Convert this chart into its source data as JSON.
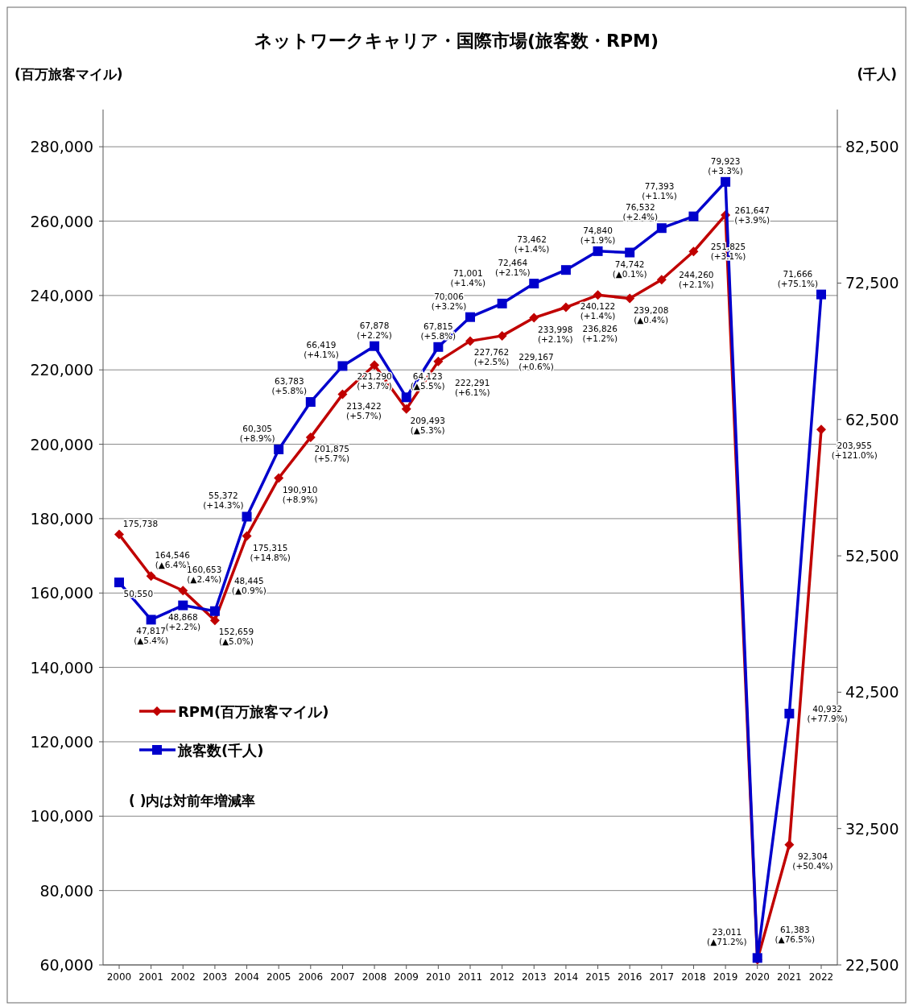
{
  "chart_data": {
    "type": "line",
    "title": "ネットワークキャリア・国際市場(旅客数・RPM)",
    "ylabel": "(百万旅客マイル)",
    "y2label": "(千人)",
    "categories": [
      "2000",
      "2001",
      "2002",
      "2003",
      "2004",
      "2005",
      "2006",
      "2007",
      "2008",
      "2009",
      "2010",
      "2011",
      "2012",
      "2013",
      "2014",
      "2015",
      "2016",
      "2017",
      "2018",
      "2019",
      "2020",
      "2021",
      "2022"
    ],
    "series": [
      {
        "name": "RPM(百万旅客マイル)",
        "color": "#c00000",
        "marker": "diamond",
        "values": [
          175738,
          164546,
          160653,
          152659,
          175315,
          190910,
          201875,
          213422,
          221290,
          209493,
          222291,
          227762,
          229167,
          233998,
          236826,
          240122,
          239208,
          244260,
          251825,
          261647,
          61383,
          92304,
          203955
        ],
        "value_labels": [
          "175,738",
          "164,546\n(▲6.4%)",
          "160,653\n(▲2.4%)",
          "152,659\n(▲5.0%)",
          "175,315\n(+14.8%)",
          "190,910\n(+8.9%)",
          "201,875\n(+5.7%)",
          "213,422\n(+5.7%)",
          "221,290\n(+3.7%)",
          "209,493\n(▲5.3%)",
          "222,291\n(+6.1%)",
          "227,762\n(+2.5%)",
          "229,167\n(+0.6%)",
          "233,998\n(+2.1%)",
          "236,826\n(+1.2%)",
          "240,122\n(+1.4%)",
          "239,208\n(▲0.4%)",
          "244,260\n(+2.1%)",
          "251,825\n(+3.1%)",
          "261,647\n(+3.9%)",
          "61,383\n(▲76.5%)",
          "92,304\n(+50.4%)",
          "203,955\n(+121.0%)"
        ]
      },
      {
        "name": "旅客数(千人)",
        "color": "#0000cc",
        "marker": "square",
        "axis": "y2",
        "values": [
          50550,
          47817,
          48868,
          48445,
          55372,
          60305,
          63783,
          66419,
          67878,
          64123,
          67815,
          70006,
          71001,
          72464,
          73462,
          74840,
          74742,
          76532,
          77393,
          79923,
          23011,
          40932,
          71666
        ],
        "value_labels": [
          "50,550",
          "47,817\n(▲5.4%)",
          "48,868\n(+2.2%)",
          "48,445\n(▲0.9%)",
          "55,372\n(+14.3%)",
          "60,305\n(+8.9%)",
          "63,783\n(+5.8%)",
          "66,419\n(+4.1%)",
          "67,878\n(+2.2%)",
          "64,123\n(▲5.5%)",
          "67,815\n(+5.8%)",
          "70,006\n(+3.2%)",
          "71,001\n(+1.4%)",
          "72,464\n(+2.1%)",
          "73,462\n(+1.4%)",
          "74,840\n(+1.9%)",
          "74,742\n(▲0.1%)",
          "76,532\n(+2.4%)",
          "77,393\n(+1.1%)",
          "79,923\n(+3.3%)",
          "23,011\n(▲71.2%)",
          "40,932\n(+77.9%)",
          "71,666\n(+75.1%)"
        ]
      }
    ],
    "ylim": [
      60000,
      290000
    ],
    "yticks": [
      {
        "value": 60000,
        "label": "60,000"
      },
      {
        "value": 80000,
        "label": "80,000"
      },
      {
        "value": 100000,
        "label": "100,000"
      },
      {
        "value": 120000,
        "label": "120,000"
      },
      {
        "value": 140000,
        "label": "140,000"
      },
      {
        "value": 160000,
        "label": "160,000"
      },
      {
        "value": 180000,
        "label": "180,000"
      },
      {
        "value": 200000,
        "label": "200,000"
      },
      {
        "value": 220000,
        "label": "220,000"
      },
      {
        "value": 240000,
        "label": "240,000"
      },
      {
        "value": 260000,
        "label": "260,000"
      },
      {
        "value": 280000,
        "label": "280,000"
      }
    ],
    "y2lim": [
      22500,
      85227
    ],
    "y2ticks": [
      {
        "value": 22500,
        "label": "22,500"
      },
      {
        "value": 32500,
        "label": "32,500"
      },
      {
        "value": 42500,
        "label": "42,500"
      },
      {
        "value": 52500,
        "label": "52,500"
      },
      {
        "value": 62500,
        "label": "62,500"
      },
      {
        "value": 72500,
        "label": "72,500"
      },
      {
        "value": 82500,
        "label": "82,500"
      }
    ],
    "grid": "y",
    "legend": "left",
    "line_style": "solid",
    "annotations": [
      "( )内は対前年増減率"
    ]
  }
}
